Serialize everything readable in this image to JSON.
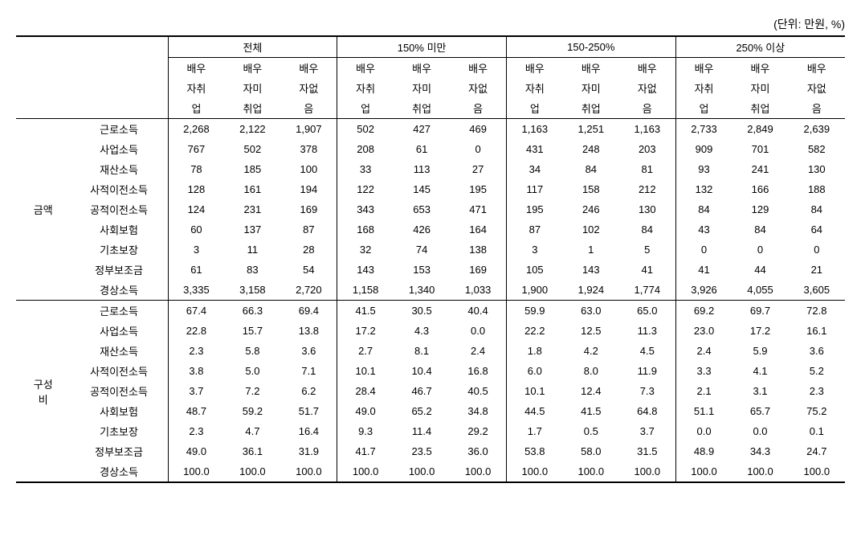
{
  "unit_label": "(단위: 만원, %)",
  "groups": [
    "전체",
    "150% 미만",
    "150-250%",
    "250% 이상"
  ],
  "subheaders": {
    "line1": [
      "배우",
      "배우",
      "배우"
    ],
    "line2": [
      "자취",
      "자미",
      "자없"
    ],
    "line3": [
      "업",
      "취업",
      "음"
    ]
  },
  "sections": [
    {
      "label": "금액",
      "rows": [
        {
          "label": "근로소득",
          "values": [
            "2,268",
            "2,122",
            "1,907",
            "502",
            "427",
            "469",
            "1,163",
            "1,251",
            "1,163",
            "2,733",
            "2,849",
            "2,639"
          ]
        },
        {
          "label": "사업소득",
          "values": [
            "767",
            "502",
            "378",
            "208",
            "61",
            "0",
            "431",
            "248",
            "203",
            "909",
            "701",
            "582"
          ]
        },
        {
          "label": "재산소득",
          "values": [
            "78",
            "185",
            "100",
            "33",
            "113",
            "27",
            "34",
            "84",
            "81",
            "93",
            "241",
            "130"
          ]
        },
        {
          "label": "사적이전소득",
          "values": [
            "128",
            "161",
            "194",
            "122",
            "145",
            "195",
            "117",
            "158",
            "212",
            "132",
            "166",
            "188"
          ]
        },
        {
          "label": "공적이전소득",
          "values": [
            "124",
            "231",
            "169",
            "343",
            "653",
            "471",
            "195",
            "246",
            "130",
            "84",
            "129",
            "84"
          ]
        },
        {
          "label": "사회보험",
          "values": [
            "60",
            "137",
            "87",
            "168",
            "426",
            "164",
            "87",
            "102",
            "84",
            "43",
            "84",
            "64"
          ]
        },
        {
          "label": "기초보장",
          "values": [
            "3",
            "11",
            "28",
            "32",
            "74",
            "138",
            "3",
            "1",
            "5",
            "0",
            "0",
            "0"
          ]
        },
        {
          "label": "정부보조금",
          "values": [
            "61",
            "83",
            "54",
            "143",
            "153",
            "169",
            "105",
            "143",
            "41",
            "41",
            "44",
            "21"
          ]
        },
        {
          "label": "경상소득",
          "values": [
            "3,335",
            "3,158",
            "2,720",
            "1,158",
            "1,340",
            "1,033",
            "1,900",
            "1,924",
            "1,774",
            "3,926",
            "4,055",
            "3,605"
          ]
        }
      ]
    },
    {
      "label_line1": "구성",
      "label_line2": "비",
      "rows": [
        {
          "label": "근로소득",
          "values": [
            "67.4",
            "66.3",
            "69.4",
            "41.5",
            "30.5",
            "40.4",
            "59.9",
            "63.0",
            "65.0",
            "69.2",
            "69.7",
            "72.8"
          ]
        },
        {
          "label": "사업소득",
          "values": [
            "22.8",
            "15.7",
            "13.8",
            "17.2",
            "4.3",
            "0.0",
            "22.2",
            "12.5",
            "11.3",
            "23.0",
            "17.2",
            "16.1"
          ]
        },
        {
          "label": "재산소득",
          "values": [
            "2.3",
            "5.8",
            "3.6",
            "2.7",
            "8.1",
            "2.4",
            "1.8",
            "4.2",
            "4.5",
            "2.4",
            "5.9",
            "3.6"
          ]
        },
        {
          "label": "사적이전소득",
          "values": [
            "3.8",
            "5.0",
            "7.1",
            "10.1",
            "10.4",
            "16.8",
            "6.0",
            "8.0",
            "11.9",
            "3.3",
            "4.1",
            "5.2"
          ]
        },
        {
          "label": "공적이전소득",
          "values": [
            "3.7",
            "7.2",
            "6.2",
            "28.4",
            "46.7",
            "40.5",
            "10.1",
            "12.4",
            "7.3",
            "2.1",
            "3.1",
            "2.3"
          ]
        },
        {
          "label": "사회보험",
          "values": [
            "48.7",
            "59.2",
            "51.7",
            "49.0",
            "65.2",
            "34.8",
            "44.5",
            "41.5",
            "64.8",
            "51.1",
            "65.7",
            "75.2"
          ]
        },
        {
          "label": "기초보장",
          "values": [
            "2.3",
            "4.7",
            "16.4",
            "9.3",
            "11.4",
            "29.2",
            "1.7",
            "0.5",
            "3.7",
            "0.0",
            "0.0",
            "0.1"
          ]
        },
        {
          "label": "정부보조금",
          "values": [
            "49.0",
            "36.1",
            "31.9",
            "41.7",
            "23.5",
            "36.0",
            "53.8",
            "58.0",
            "31.5",
            "48.9",
            "34.3",
            "24.7"
          ]
        },
        {
          "label": "경상소득",
          "values": [
            "100.0",
            "100.0",
            "100.0",
            "100.0",
            "100.0",
            "100.0",
            "100.0",
            "100.0",
            "100.0",
            "100.0",
            "100.0",
            "100.0"
          ]
        }
      ]
    }
  ]
}
